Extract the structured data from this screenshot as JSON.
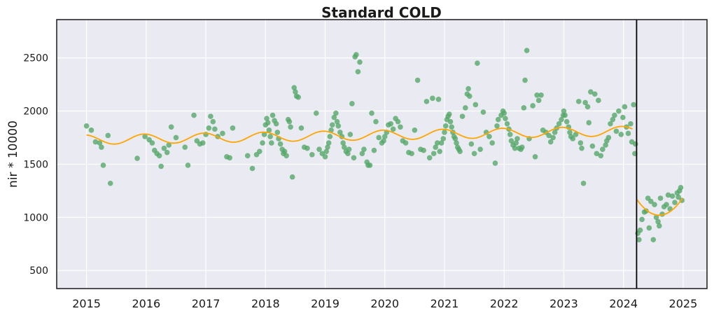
{
  "chart_data": {
    "type": "scatter",
    "title": "Standard COLD",
    "xlabel": "",
    "ylabel": "nir * 10000",
    "x_ticks": [
      "2015",
      "2016",
      "2017",
      "2018",
      "2019",
      "2020",
      "2021",
      "2022",
      "2023",
      "2024",
      "2025"
    ],
    "y_ticks": [
      500,
      1000,
      1500,
      2000,
      2500
    ],
    "xlim": [
      2014.5,
      2025.4
    ],
    "ylim": [
      330,
      2860
    ],
    "grid": true,
    "break_x": 2024.22,
    "colors": {
      "points": "#55a868",
      "fit": "#ffa500",
      "background": "#eaeaf2",
      "grid": "#ffffff",
      "break": "#000000"
    },
    "segments": [
      {
        "x_start": 2015.0,
        "x_end": 2024.15,
        "mean": 1730,
        "slope": 9.0,
        "amplitude": 45,
        "phase": 0.2
      },
      {
        "x_start": 2024.22,
        "x_end": 2024.99,
        "mean": 1045,
        "slope": 0,
        "amplitude": 0,
        "phase": 0,
        "quad": [
          1020,
          1180,
          2024.6
        ]
      }
    ],
    "points": [
      [
        2015.0,
        1860
      ],
      [
        2015.08,
        1820
      ],
      [
        2015.15,
        1710
      ],
      [
        2015.22,
        1700
      ],
      [
        2015.25,
        1660
      ],
      [
        2015.28,
        1490
      ],
      [
        2015.36,
        1770
      ],
      [
        2015.4,
        1320
      ],
      [
        2015.85,
        1555
      ],
      [
        2015.98,
        1760
      ],
      [
        2016.05,
        1730
      ],
      [
        2016.1,
        1700
      ],
      [
        2016.14,
        1630
      ],
      [
        2016.18,
        1600
      ],
      [
        2016.22,
        1580
      ],
      [
        2016.25,
        1480
      ],
      [
        2016.3,
        1650
      ],
      [
        2016.35,
        1610
      ],
      [
        2016.38,
        1680
      ],
      [
        2016.42,
        1850
      ],
      [
        2016.5,
        1750
      ],
      [
        2016.65,
        1660
      ],
      [
        2016.7,
        1490
      ],
      [
        2016.8,
        1960
      ],
      [
        2016.85,
        1720
      ],
      [
        2016.9,
        1690
      ],
      [
        2016.95,
        1700
      ],
      [
        2017.0,
        1780
      ],
      [
        2017.05,
        1840
      ],
      [
        2017.08,
        1950
      ],
      [
        2017.12,
        1900
      ],
      [
        2017.15,
        1830
      ],
      [
        2017.2,
        1760
      ],
      [
        2017.28,
        1790
      ],
      [
        2017.35,
        1570
      ],
      [
        2017.4,
        1560
      ],
      [
        2017.45,
        1840
      ],
      [
        2017.7,
        1580
      ],
      [
        2017.78,
        1460
      ],
      [
        2017.85,
        1590
      ],
      [
        2017.9,
        1620
      ],
      [
        2017.95,
        1700
      ],
      [
        2017.98,
        1780
      ],
      [
        2018.0,
        1870
      ],
      [
        2018.02,
        1930
      ],
      [
        2018.04,
        1890
      ],
      [
        2018.06,
        1820
      ],
      [
        2018.08,
        1760
      ],
      [
        2018.1,
        1700
      ],
      [
        2018.12,
        1960
      ],
      [
        2018.15,
        1910
      ],
      [
        2018.18,
        1880
      ],
      [
        2018.2,
        1800
      ],
      [
        2018.22,
        1740
      ],
      [
        2018.25,
        1690
      ],
      [
        2018.28,
        1640
      ],
      [
        2018.3,
        1600
      ],
      [
        2018.32,
        1620
      ],
      [
        2018.35,
        1580
      ],
      [
        2018.38,
        1920
      ],
      [
        2018.4,
        1900
      ],
      [
        2018.42,
        1850
      ],
      [
        2018.45,
        1380
      ],
      [
        2018.48,
        2220
      ],
      [
        2018.5,
        2180
      ],
      [
        2018.52,
        2140
      ],
      [
        2018.55,
        2130
      ],
      [
        2018.6,
        1840
      ],
      [
        2018.65,
        1660
      ],
      [
        2018.7,
        1650
      ],
      [
        2018.78,
        1590
      ],
      [
        2018.85,
        1980
      ],
      [
        2018.9,
        1640
      ],
      [
        2018.95,
        1600
      ],
      [
        2019.0,
        1570
      ],
      [
        2019.02,
        1620
      ],
      [
        2019.04,
        1660
      ],
      [
        2019.06,
        1700
      ],
      [
        2019.08,
        1760
      ],
      [
        2019.1,
        1820
      ],
      [
        2019.12,
        1870
      ],
      [
        2019.15,
        1940
      ],
      [
        2019.18,
        1980
      ],
      [
        2019.2,
        1900
      ],
      [
        2019.22,
        1860
      ],
      [
        2019.25,
        1800
      ],
      [
        2019.28,
        1760
      ],
      [
        2019.3,
        1700
      ],
      [
        2019.32,
        1660
      ],
      [
        2019.35,
        1620
      ],
      [
        2019.38,
        1600
      ],
      [
        2019.4,
        1640
      ],
      [
        2019.42,
        1780
      ],
      [
        2019.45,
        2070
      ],
      [
        2019.48,
        1560
      ],
      [
        2019.5,
        2510
      ],
      [
        2019.52,
        2530
      ],
      [
        2019.55,
        2370
      ],
      [
        2019.58,
        2460
      ],
      [
        2019.62,
        1600
      ],
      [
        2019.65,
        1640
      ],
      [
        2019.7,
        1520
      ],
      [
        2019.72,
        1490
      ],
      [
        2019.75,
        1490
      ],
      [
        2019.78,
        1980
      ],
      [
        2019.82,
        1630
      ],
      [
        2019.85,
        1900
      ],
      [
        2019.9,
        1750
      ],
      [
        2019.95,
        1700
      ],
      [
        2019.98,
        1720
      ],
      [
        2020.0,
        1760
      ],
      [
        2020.03,
        1800
      ],
      [
        2020.06,
        1870
      ],
      [
        2020.1,
        1880
      ],
      [
        2020.14,
        1830
      ],
      [
        2020.18,
        1930
      ],
      [
        2020.22,
        1900
      ],
      [
        2020.26,
        1850
      ],
      [
        2020.3,
        1720
      ],
      [
        2020.35,
        1700
      ],
      [
        2020.4,
        1610
      ],
      [
        2020.45,
        1600
      ],
      [
        2020.5,
        1820
      ],
      [
        2020.55,
        2290
      ],
      [
        2020.6,
        1640
      ],
      [
        2020.65,
        1630
      ],
      [
        2020.7,
        2090
      ],
      [
        2020.75,
        1560
      ],
      [
        2020.8,
        2120
      ],
      [
        2020.82,
        1600
      ],
      [
        2020.85,
        1660
      ],
      [
        2020.88,
        1700
      ],
      [
        2020.9,
        2110
      ],
      [
        2020.92,
        1620
      ],
      [
        2020.95,
        1700
      ],
      [
        2020.98,
        1740
      ],
      [
        2021.0,
        1800
      ],
      [
        2021.02,
        1860
      ],
      [
        2021.04,
        1920
      ],
      [
        2021.06,
        1950
      ],
      [
        2021.08,
        1970
      ],
      [
        2021.1,
        1900
      ],
      [
        2021.12,
        1850
      ],
      [
        2021.14,
        1800
      ],
      [
        2021.16,
        1760
      ],
      [
        2021.18,
        1740
      ],
      [
        2021.2,
        1700
      ],
      [
        2021.22,
        1660
      ],
      [
        2021.24,
        1640
      ],
      [
        2021.26,
        1620
      ],
      [
        2021.3,
        1950
      ],
      [
        2021.35,
        2030
      ],
      [
        2021.38,
        2160
      ],
      [
        2021.4,
        2210
      ],
      [
        2021.42,
        2140
      ],
      [
        2021.45,
        1690
      ],
      [
        2021.5,
        1600
      ],
      [
        2021.52,
        2060
      ],
      [
        2021.55,
        2450
      ],
      [
        2021.6,
        1640
      ],
      [
        2021.65,
        1990
      ],
      [
        2021.7,
        1800
      ],
      [
        2021.75,
        1760
      ],
      [
        2021.8,
        1700
      ],
      [
        2021.85,
        1510
      ],
      [
        2021.88,
        1860
      ],
      [
        2021.9,
        1920
      ],
      [
        2021.95,
        1960
      ],
      [
        2021.98,
        2000
      ],
      [
        2022.0,
        1980
      ],
      [
        2022.02,
        1930
      ],
      [
        2022.05,
        1880
      ],
      [
        2022.08,
        1830
      ],
      [
        2022.1,
        1780
      ],
      [
        2022.12,
        1720
      ],
      [
        2022.15,
        1680
      ],
      [
        2022.18,
        1650
      ],
      [
        2022.2,
        1700
      ],
      [
        2022.22,
        1740
      ],
      [
        2022.25,
        1650
      ],
      [
        2022.28,
        1640
      ],
      [
        2022.3,
        1660
      ],
      [
        2022.33,
        2030
      ],
      [
        2022.35,
        2290
      ],
      [
        2022.38,
        2570
      ],
      [
        2022.42,
        1740
      ],
      [
        2022.48,
        2050
      ],
      [
        2022.52,
        1570
      ],
      [
        2022.55,
        2150
      ],
      [
        2022.58,
        2100
      ],
      [
        2022.62,
        2150
      ],
      [
        2022.65,
        1820
      ],
      [
        2022.7,
        1800
      ],
      [
        2022.75,
        1770
      ],
      [
        2022.78,
        1710
      ],
      [
        2022.82,
        1750
      ],
      [
        2022.85,
        1800
      ],
      [
        2022.88,
        1840
      ],
      [
        2022.92,
        1880
      ],
      [
        2022.96,
        1920
      ],
      [
        2022.99,
        1960
      ],
      [
        2023.0,
        2000
      ],
      [
        2023.02,
        1960
      ],
      [
        2023.05,
        1900
      ],
      [
        2023.08,
        1850
      ],
      [
        2023.1,
        1800
      ],
      [
        2023.12,
        1760
      ],
      [
        2023.15,
        1740
      ],
      [
        2023.2,
        1780
      ],
      [
        2023.25,
        2090
      ],
      [
        2023.28,
        1700
      ],
      [
        2023.3,
        1650
      ],
      [
        2023.33,
        1320
      ],
      [
        2023.36,
        2080
      ],
      [
        2023.4,
        2040
      ],
      [
        2023.42,
        1890
      ],
      [
        2023.45,
        2180
      ],
      [
        2023.48,
        1670
      ],
      [
        2023.52,
        2160
      ],
      [
        2023.55,
        1600
      ],
      [
        2023.58,
        2100
      ],
      [
        2023.62,
        1580
      ],
      [
        2023.65,
        1640
      ],
      [
        2023.7,
        1680
      ],
      [
        2023.72,
        1720
      ],
      [
        2023.75,
        1750
      ],
      [
        2023.78,
        1880
      ],
      [
        2023.82,
        1920
      ],
      [
        2023.85,
        1960
      ],
      [
        2023.88,
        1810
      ],
      [
        2023.92,
        2000
      ],
      [
        2023.96,
        1780
      ],
      [
        2023.99,
        1940
      ],
      [
        2024.02,
        2040
      ],
      [
        2024.05,
        1850
      ],
      [
        2024.08,
        1790
      ],
      [
        2024.12,
        1880
      ],
      [
        2024.14,
        1710
      ],
      [
        2024.17,
        2060
      ],
      [
        2024.19,
        1600
      ],
      [
        2024.2,
        1690
      ],
      [
        2024.24,
        850
      ],
      [
        2024.26,
        790
      ],
      [
        2024.28,
        880
      ],
      [
        2024.31,
        980
      ],
      [
        2024.35,
        1050
      ],
      [
        2024.38,
        1060
      ],
      [
        2024.41,
        1180
      ],
      [
        2024.43,
        900
      ],
      [
        2024.46,
        1150
      ],
      [
        2024.5,
        790
      ],
      [
        2024.52,
        1120
      ],
      [
        2024.55,
        1000
      ],
      [
        2024.58,
        960
      ],
      [
        2024.6,
        920
      ],
      [
        2024.62,
        1180
      ],
      [
        2024.65,
        1030
      ],
      [
        2024.68,
        1100
      ],
      [
        2024.72,
        1120
      ],
      [
        2024.75,
        1210
      ],
      [
        2024.78,
        1080
      ],
      [
        2024.82,
        1200
      ],
      [
        2024.86,
        1140
      ],
      [
        2024.9,
        1230
      ],
      [
        2024.92,
        1190
      ],
      [
        2024.94,
        1250
      ],
      [
        2024.96,
        1280
      ],
      [
        2024.98,
        1160
      ]
    ]
  }
}
